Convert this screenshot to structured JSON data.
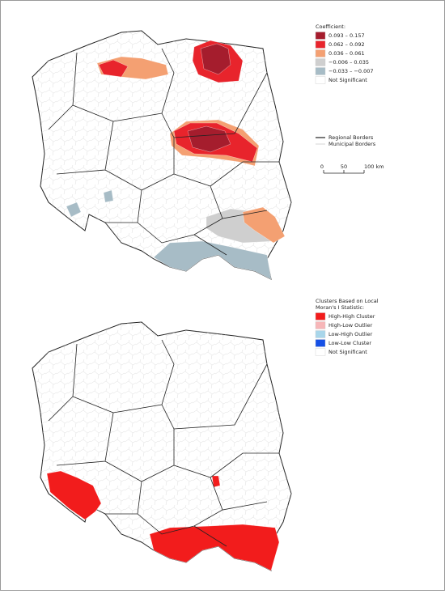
{
  "maps": [
    {
      "legend": {
        "title_lines": [
          "Coefficient:"
        ],
        "items": [
          {
            "label": "0.093 – 0.157",
            "color": "#a51d2d"
          },
          {
            "label": "0.062 – 0.092",
            "color": "#e8242c"
          },
          {
            "label": "0.036 – 0.061",
            "color": "#f4a072"
          },
          {
            "label": "−0.006 – 0.035",
            "color": "#cfcfcf"
          },
          {
            "label": "−0.033 – −0.007",
            "color": "#a7bcc6"
          },
          {
            "label": "Not Significant",
            "color": "#ffffff"
          }
        ]
      },
      "border_legend": {
        "items": [
          {
            "label": "Regional Borders"
          },
          {
            "label": "Municipal Borders"
          }
        ]
      },
      "scale_bar": {
        "labels": [
          "0",
          "50",
          "100 km"
        ]
      }
    },
    {
      "legend": {
        "title_lines": [
          "Clusters Based on Local",
          "Moran's I Statistic:"
        ],
        "items": [
          {
            "label": "High-High Cluster",
            "color": "#f21c1c"
          },
          {
            "label": "High-Low Outlier",
            "color": "#f7b6b8"
          },
          {
            "label": "Low-High Outlier",
            "color": "#a8d6ea"
          },
          {
            "label": "Low-Low Cluster",
            "color": "#1550e6"
          },
          {
            "label": "Not Significant",
            "color": "#ffffff"
          }
        ]
      }
    }
  ]
}
